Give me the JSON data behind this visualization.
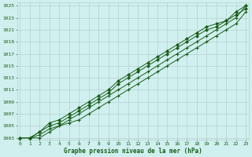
{
  "title": "Graphe pression niveau de la mer (hPa)",
  "bg_color": "#cff0ee",
  "grid_color": "#b0c8c8",
  "line_color": "#1a5c1a",
  "x_min": 0,
  "x_max": 23,
  "y_min": 1003,
  "y_max": 1025,
  "y_ticks": [
    1003,
    1005,
    1007,
    1009,
    1011,
    1013,
    1015,
    1017,
    1019,
    1021,
    1023,
    1025
  ],
  "x_ticks": [
    0,
    1,
    2,
    3,
    4,
    5,
    6,
    7,
    8,
    9,
    10,
    11,
    12,
    13,
    14,
    15,
    16,
    17,
    18,
    19,
    20,
    21,
    22,
    23
  ],
  "series1": [
    1003,
    1003,
    1003,
    1004,
    1005,
    1005.5,
    1006,
    1007,
    1008,
    1009,
    1010,
    1011,
    1012,
    1013,
    1014,
    1015,
    1016,
    1017,
    1018,
    1019,
    1020,
    1021,
    1022,
    1024
  ],
  "series2": [
    1003,
    1003,
    1003.5,
    1004.5,
    1005,
    1006,
    1007,
    1008,
    1009,
    1010,
    1011,
    1012,
    1013,
    1014,
    1015,
    1016,
    1017,
    1018,
    1019,
    1020,
    1021,
    1022,
    1023,
    1025
  ],
  "series3": [
    1003,
    1003,
    1004,
    1005,
    1005.5,
    1006.5,
    1007.5,
    1008.5,
    1009.5,
    1010.5,
    1012,
    1013,
    1014,
    1015,
    1016,
    1017,
    1018,
    1019,
    1020,
    1021,
    1021.5,
    1022.5,
    1023.5,
    1024.5
  ],
  "series4": [
    1003,
    1003,
    1004,
    1005.5,
    1006,
    1007,
    1008,
    1009,
    1010,
    1011,
    1012.5,
    1013.5,
    1014.5,
    1015.5,
    1016.5,
    1017.5,
    1018.5,
    1019.5,
    1020.5,
    1021.5,
    1022,
    1022.5,
    1024,
    1025
  ]
}
